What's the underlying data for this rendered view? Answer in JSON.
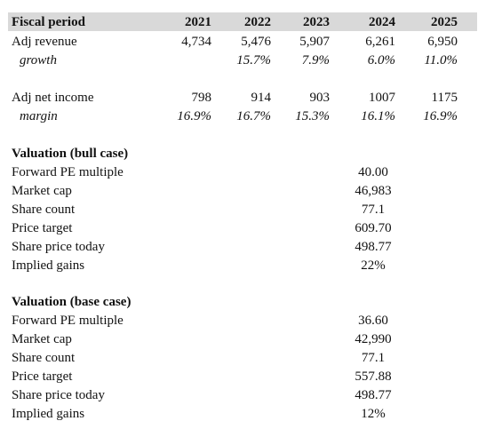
{
  "table": {
    "header": [
      "Fiscal period",
      "2021",
      "2022",
      "2023",
      "2024",
      "2025"
    ],
    "rows": [
      {
        "label": "Adj revenue",
        "values": [
          "4,734",
          "5,476",
          "5,907",
          "6,261",
          "6,950"
        ]
      },
      {
        "label": "growth",
        "italic": true,
        "values": [
          null,
          "15.7%",
          "7.9%",
          "6.0%",
          "11.0%"
        ]
      },
      {
        "label": "Adj net income",
        "values": [
          "798",
          "914",
          "903",
          "1007",
          "1175"
        ]
      },
      {
        "label": "margin",
        "italic": true,
        "values": [
          "16.9%",
          "16.7%",
          "15.3%",
          "16.1%",
          "16.9%"
        ]
      }
    ]
  },
  "sections": [
    {
      "title": "Valuation (bull case)",
      "rows": [
        {
          "label": "Forward PE multiple",
          "value": "40.00"
        },
        {
          "label": "Market cap",
          "value": "46,983"
        },
        {
          "label": "Share count",
          "value": "77.1"
        },
        {
          "label": "Price target",
          "value": "609.70"
        },
        {
          "label": "Share price today",
          "value": "498.77"
        },
        {
          "label": "Implied gains",
          "value": "22%"
        }
      ]
    },
    {
      "title": "Valuation (base case)",
      "rows": [
        {
          "label": "Forward PE multiple",
          "value": "36.60"
        },
        {
          "label": "Market cap",
          "value": "42,990"
        },
        {
          "label": "Share count",
          "value": "77.1"
        },
        {
          "label": "Price target",
          "value": "557.88"
        },
        {
          "label": "Share price today",
          "value": "498.77"
        },
        {
          "label": "Implied gains",
          "value": "12%"
        }
      ]
    }
  ]
}
